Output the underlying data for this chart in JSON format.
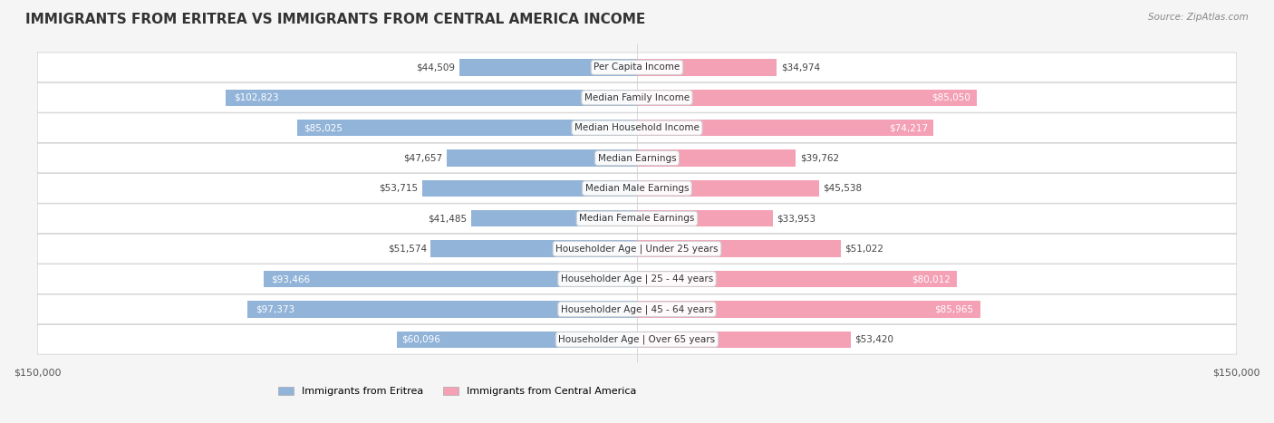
{
  "title": "IMMIGRANTS FROM ERITREA VS IMMIGRANTS FROM CENTRAL AMERICA INCOME",
  "source": "Source: ZipAtlas.com",
  "categories": [
    "Per Capita Income",
    "Median Family Income",
    "Median Household Income",
    "Median Earnings",
    "Median Male Earnings",
    "Median Female Earnings",
    "Householder Age | Under 25 years",
    "Householder Age | 25 - 44 years",
    "Householder Age | 45 - 64 years",
    "Householder Age | Over 65 years"
  ],
  "eritrea_values": [
    44509,
    102823,
    85025,
    47657,
    53715,
    41485,
    51574,
    93466,
    97373,
    60096
  ],
  "central_america_values": [
    34974,
    85050,
    74217,
    39762,
    45538,
    33953,
    51022,
    80012,
    85965,
    53420
  ],
  "eritrea_labels": [
    "$44,509",
    "$102,823",
    "$85,025",
    "$47,657",
    "$53,715",
    "$41,485",
    "$51,574",
    "$93,466",
    "$97,373",
    "$60,096"
  ],
  "central_america_labels": [
    "$34,974",
    "$85,050",
    "$74,217",
    "$39,762",
    "$45,538",
    "$33,953",
    "$51,022",
    "$80,012",
    "$85,965",
    "$53,420"
  ],
  "eritrea_color": "#92b4d9",
  "eritrea_color_dark": "#6699cc",
  "central_america_color": "#f4a0b5",
  "central_america_color_dark": "#e87090",
  "axis_max": 150000,
  "background_color": "#f5f5f5",
  "row_bg_color": "#ffffff",
  "legend_eritrea": "Immigrants from Eritrea",
  "legend_central_america": "Immigrants from Central America"
}
